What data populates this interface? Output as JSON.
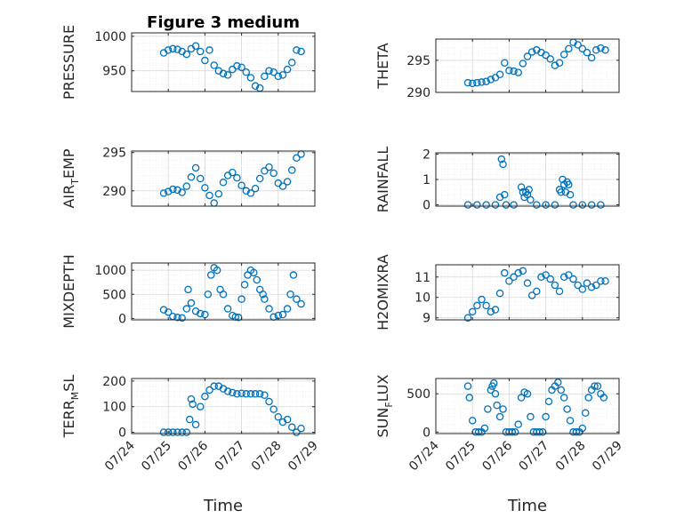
{
  "figure_title": "Figure 3 medium",
  "colors": {
    "marker": "#0072BD",
    "axis": "#262626",
    "grid": "#d7d7d7",
    "minor_grid": "#ebebeb",
    "background": "#ffffff"
  },
  "chart_data": [
    {
      "type": "scatter",
      "id": "pressure",
      "title": "Figure 3 medium",
      "ylabel": "PRESSURE",
      "xlabel": "",
      "xlim": [
        "2010-07-24",
        "2010-07-29"
      ],
      "ylim": [
        920,
        1005
      ],
      "yticks": [
        950,
        1000
      ],
      "ytick_labels": [
        "950",
        "1000"
      ],
      "xticks": [],
      "grid": true,
      "x": [
        "07/24 21:00",
        "07/25 00:00",
        "07/25 03:00",
        "07/25 06:00",
        "07/25 09:00",
        "07/25 12:00",
        "07/25 15:00",
        "07/25 18:00",
        "07/25 21:00",
        "07/26 00:00",
        "07/26 03:00",
        "07/26 06:00",
        "07/26 09:00",
        "07/26 12:00",
        "07/26 15:00",
        "07/26 18:00",
        "07/26 21:00",
        "07/27 00:00",
        "07/27 03:00",
        "07/27 06:00",
        "07/27 09:00",
        "07/27 12:00",
        "07/27 15:00",
        "07/27 18:00",
        "07/27 21:00",
        "07/28 00:00",
        "07/28 03:00",
        "07/28 06:00",
        "07/28 09:00",
        "07/28 12:00",
        "07/28 15:00"
      ],
      "y": [
        976,
        980,
        982,
        981,
        978,
        974,
        982,
        986,
        978,
        965,
        980,
        958,
        950,
        946,
        944,
        952,
        957,
        955,
        948,
        940,
        928,
        925,
        942,
        950,
        948,
        942,
        944,
        952,
        962,
        980,
        978
      ]
    },
    {
      "type": "scatter",
      "id": "theta",
      "ylabel": "THETA",
      "xlabel": "",
      "xlim": [
        "2010-07-24",
        "2010-07-29"
      ],
      "ylim": [
        290,
        298.3
      ],
      "yticks": [
        290,
        295
      ],
      "ytick_labels": [
        "290",
        "295"
      ],
      "xticks": [],
      "grid": true,
      "x": [
        "07/24 21:00",
        "07/25 00:00",
        "07/25 03:00",
        "07/25 06:00",
        "07/25 09:00",
        "07/25 12:00",
        "07/25 15:00",
        "07/25 18:00",
        "07/25 21:00",
        "07/26 00:00",
        "07/26 03:00",
        "07/26 06:00",
        "07/26 09:00",
        "07/26 12:00",
        "07/26 15:00",
        "07/26 18:00",
        "07/26 21:00",
        "07/27 00:00",
        "07/27 03:00",
        "07/27 06:00",
        "07/27 09:00",
        "07/27 12:00",
        "07/27 15:00",
        "07/27 18:00",
        "07/27 21:00",
        "07/28 00:00",
        "07/28 03:00",
        "07/28 06:00",
        "07/28 09:00",
        "07/28 12:00",
        "07/28 15:00"
      ],
      "y": [
        291.5,
        291.4,
        291.5,
        291.6,
        291.7,
        292.0,
        292.3,
        292.8,
        294.6,
        293.4,
        293.3,
        293.1,
        294.5,
        295.6,
        296.3,
        296.6,
        296.2,
        295.8,
        295.2,
        294.2,
        294.6,
        295.9,
        296.8,
        297.8,
        297.4,
        296.8,
        296.2,
        295.4,
        296.6,
        296.9,
        296.6
      ]
    },
    {
      "type": "scatter",
      "id": "air_temp",
      "ylabel": "AIR_TEMP",
      "ylabel_main": "AIR",
      "ylabel_sub": "T",
      "ylabel_tail": "EMP",
      "xlabel": "",
      "xlim": [
        "2010-07-24",
        "2010-07-29"
      ],
      "ylim": [
        288,
        295.2
      ],
      "yticks": [
        290,
        295
      ],
      "ytick_labels": [
        "290",
        "295"
      ],
      "xticks": [],
      "grid": true,
      "x": [
        "07/24 21:00",
        "07/25 00:00",
        "07/25 03:00",
        "07/25 06:00",
        "07/25 09:00",
        "07/25 12:00",
        "07/25 15:00",
        "07/25 18:00",
        "07/25 21:00",
        "07/26 00:00",
        "07/26 03:00",
        "07/26 06:00",
        "07/26 09:00",
        "07/26 12:00",
        "07/26 15:00",
        "07/26 18:00",
        "07/26 21:00",
        "07/27 00:00",
        "07/27 03:00",
        "07/27 06:00",
        "07/27 09:00",
        "07/27 12:00",
        "07/27 15:00",
        "07/27 18:00",
        "07/27 21:00",
        "07/28 00:00",
        "07/28 03:00",
        "07/28 06:00",
        "07/28 09:00",
        "07/28 12:00",
        "07/28 15:00"
      ],
      "y": [
        289.7,
        289.9,
        290.2,
        290.1,
        289.8,
        290.6,
        291.8,
        293.0,
        291.6,
        290.4,
        289.4,
        288.4,
        289.6,
        291.1,
        292.0,
        292.4,
        291.7,
        290.7,
        290.0,
        289.7,
        290.3,
        291.6,
        292.6,
        293.1,
        292.3,
        291.0,
        290.6,
        291.2,
        292.7,
        294.3,
        294.8
      ]
    },
    {
      "type": "scatter",
      "id": "rainfall",
      "ylabel": "RAINFALL",
      "xlabel": "",
      "xlim": [
        "2010-07-24",
        "2010-07-29"
      ],
      "ylim": [
        -0.05,
        2.05
      ],
      "yticks": [
        0,
        1,
        2
      ],
      "ytick_labels": [
        "0",
        "1",
        "2"
      ],
      "xticks": [],
      "grid": true,
      "x": [
        "07/24 21:00",
        "07/25 03:00",
        "07/25 09:00",
        "07/25 15:00",
        "07/25 18:00",
        "07/25 19:00",
        "07/25 20:00",
        "07/25 21:00",
        "07/25 22:00",
        "07/26 03:00",
        "07/26 08:00",
        "07/26 09:00",
        "07/26 10:00",
        "07/26 11:00",
        "07/26 12:00",
        "07/26 13:00",
        "07/26 14:00",
        "07/26 18:00",
        "07/27 00:00",
        "07/27 06:00",
        "07/27 09:00",
        "07/27 10:00",
        "07/27 11:00",
        "07/27 12:00",
        "07/27 13:00",
        "07/27 14:00",
        "07/27 15:00",
        "07/27 16:00",
        "07/27 18:00",
        "07/28 00:00",
        "07/28 06:00",
        "07/28 12:00"
      ],
      "y": [
        0,
        0,
        0,
        0,
        0.3,
        1.8,
        1.6,
        0.4,
        0,
        0,
        0.7,
        0.5,
        0.3,
        0.5,
        0.4,
        0.6,
        0.2,
        0,
        0,
        0,
        0.6,
        0.5,
        1.0,
        0.8,
        0.5,
        0.9,
        0.8,
        0.4,
        0,
        0,
        0,
        0
      ]
    },
    {
      "type": "scatter",
      "id": "mixdepth",
      "ylabel": "MIXDEPTH",
      "xlabel": "",
      "xlim": [
        "2010-07-24",
        "2010-07-29"
      ],
      "ylim": [
        -30,
        1150
      ],
      "yticks": [
        0,
        500,
        1000
      ],
      "ytick_labels": [
        "0",
        "500",
        "1000"
      ],
      "xticks": [],
      "grid": true,
      "x": [
        "07/24 21:00",
        "07/25 00:00",
        "07/25 03:00",
        "07/25 06:00",
        "07/25 09:00",
        "07/25 12:00",
        "07/25 13:00",
        "07/25 15:00",
        "07/25 18:00",
        "07/25 21:00",
        "07/26 00:00",
        "07/26 02:00",
        "07/26 04:00",
        "07/26 06:00",
        "07/26 08:00",
        "07/26 10:00",
        "07/26 12:00",
        "07/26 15:00",
        "07/26 18:00",
        "07/26 20:00",
        "07/26 22:00",
        "07/27 00:00",
        "07/27 02:00",
        "07/27 04:00",
        "07/27 06:00",
        "07/27 08:00",
        "07/27 10:00",
        "07/27 12:00",
        "07/27 14:00",
        "07/27 15:00",
        "07/27 18:00",
        "07/27 21:00",
        "07/28 00:00",
        "07/28 03:00",
        "07/28 06:00",
        "07/28 08:00",
        "07/28 10:00",
        "07/28 12:00",
        "07/28 15:00"
      ],
      "y": [
        180,
        130,
        40,
        20,
        10,
        200,
        600,
        320,
        150,
        100,
        80,
        500,
        900,
        1050,
        1000,
        600,
        500,
        200,
        60,
        30,
        20,
        400,
        700,
        900,
        1000,
        950,
        800,
        600,
        500,
        400,
        200,
        30,
        60,
        80,
        200,
        500,
        900,
        400,
        300
      ]
    },
    {
      "type": "scatter",
      "id": "h2omixra",
      "ylabel": "H2OMIXRA",
      "xlabel": "",
      "xlim": [
        "2010-07-24",
        "2010-07-29"
      ],
      "ylim": [
        8.9,
        11.6
      ],
      "yticks": [
        9,
        10,
        11
      ],
      "ytick_labels": [
        "9",
        "10",
        "11"
      ],
      "xticks": [],
      "grid": true,
      "x": [
        "07/24 21:00",
        "07/25 00:00",
        "07/25 03:00",
        "07/25 06:00",
        "07/25 09:00",
        "07/25 12:00",
        "07/25 15:00",
        "07/25 18:00",
        "07/25 21:00",
        "07/26 00:00",
        "07/26 03:00",
        "07/26 06:00",
        "07/26 09:00",
        "07/26 12:00",
        "07/26 15:00",
        "07/26 18:00",
        "07/26 21:00",
        "07/27 00:00",
        "07/27 03:00",
        "07/27 06:00",
        "07/27 09:00",
        "07/27 12:00",
        "07/27 15:00",
        "07/27 18:00",
        "07/27 21:00",
        "07/28 00:00",
        "07/28 03:00",
        "07/28 06:00",
        "07/28 09:00",
        "07/28 12:00",
        "07/28 15:00"
      ],
      "y": [
        9.0,
        9.3,
        9.6,
        9.9,
        9.6,
        9.3,
        9.4,
        10.2,
        11.2,
        10.8,
        11.0,
        11.2,
        11.3,
        10.7,
        10.1,
        10.3,
        11.0,
        11.1,
        10.9,
        10.6,
        10.3,
        11.0,
        11.1,
        10.9,
        10.6,
        10.4,
        10.7,
        10.5,
        10.6,
        10.8,
        10.8
      ]
    },
    {
      "type": "scatter",
      "id": "terr_msl",
      "ylabel": "TERR_MSL",
      "ylabel_main": "TERR",
      "ylabel_sub": "M",
      "ylabel_tail": "SL",
      "xlabel": "Time",
      "xlim": [
        "2010-07-24",
        "2010-07-29"
      ],
      "ylim": [
        -5,
        210
      ],
      "yticks": [
        0,
        100,
        200
      ],
      "ytick_labels": [
        "0",
        "100",
        "200"
      ],
      "xticks": [
        "2010-07-24",
        "2010-07-25",
        "2010-07-26",
        "2010-07-27",
        "2010-07-28",
        "2010-07-29"
      ],
      "xtick_labels": [
        "07/24",
        "07/25",
        "07/26",
        "07/27",
        "07/28",
        "07/29"
      ],
      "grid": true,
      "x": [
        "07/24 21:00",
        "07/25 00:00",
        "07/25 03:00",
        "07/25 06:00",
        "07/25 09:00",
        "07/25 12:00",
        "07/25 14:00",
        "07/25 15:00",
        "07/25 16:00",
        "07/25 18:00",
        "07/25 21:00",
        "07/26 00:00",
        "07/26 03:00",
        "07/26 06:00",
        "07/26 09:00",
        "07/26 12:00",
        "07/26 15:00",
        "07/26 18:00",
        "07/26 21:00",
        "07/27 00:00",
        "07/27 03:00",
        "07/27 06:00",
        "07/27 09:00",
        "07/27 12:00",
        "07/27 15:00",
        "07/27 18:00",
        "07/27 21:00",
        "07/28 00:00",
        "07/28 03:00",
        "07/28 06:00",
        "07/28 09:00",
        "07/28 12:00",
        "07/28 15:00"
      ],
      "y": [
        0,
        0,
        0,
        0,
        0,
        0,
        50,
        130,
        110,
        30,
        100,
        140,
        165,
        180,
        180,
        170,
        160,
        155,
        150,
        152,
        150,
        150,
        150,
        150,
        145,
        120,
        90,
        60,
        40,
        50,
        20,
        0,
        15
      ]
    },
    {
      "type": "scatter",
      "id": "sun_flux",
      "ylabel": "SUN_FLUX",
      "ylabel_main": "SUN",
      "ylabel_sub": "F",
      "ylabel_tail": "LUX",
      "xlabel": "Time",
      "xlim": [
        "2010-07-24",
        "2010-07-29"
      ],
      "ylim": [
        -20,
        700
      ],
      "yticks": [
        0,
        500
      ],
      "ytick_labels": [
        "0",
        "500"
      ],
      "xticks": [
        "2010-07-24",
        "2010-07-25",
        "2010-07-26",
        "2010-07-27",
        "2010-07-28",
        "2010-07-29"
      ],
      "xtick_labels": [
        "07/24",
        "07/25",
        "07/26",
        "07/27",
        "07/28",
        "07/29"
      ],
      "grid": true,
      "x": [
        "07/24 21:00",
        "07/24 22:00",
        "07/25 00:00",
        "07/25 02:00",
        "07/25 04:00",
        "07/25 06:00",
        "07/25 08:00",
        "07/25 10:00",
        "07/25 12:00",
        "07/25 13:00",
        "07/25 14:00",
        "07/25 15:00",
        "07/25 16:00",
        "07/25 18:00",
        "07/25 20:00",
        "07/25 22:00",
        "07/26 00:00",
        "07/26 02:00",
        "07/26 04:00",
        "07/26 06:00",
        "07/26 08:00",
        "07/26 10:00",
        "07/26 12:00",
        "07/26 14:00",
        "07/26 16:00",
        "07/26 18:00",
        "07/26 20:00",
        "07/26 22:00",
        "07/27 00:00",
        "07/27 02:00",
        "07/27 04:00",
        "07/27 06:00",
        "07/27 08:00",
        "07/27 10:00",
        "07/27 12:00",
        "07/27 14:00",
        "07/27 16:00",
        "07/27 18:00",
        "07/27 20:00",
        "07/27 22:00",
        "07/28 00:00",
        "07/28 02:00",
        "07/28 04:00",
        "07/28 06:00",
        "07/28 08:00",
        "07/28 10:00",
        "07/28 12:00",
        "07/28 14:00"
      ],
      "y": [
        600,
        450,
        150,
        0,
        0,
        0,
        50,
        300,
        550,
        600,
        640,
        500,
        350,
        200,
        300,
        0,
        0,
        0,
        0,
        100,
        450,
        520,
        500,
        200,
        0,
        0,
        0,
        0,
        200,
        400,
        550,
        600,
        650,
        550,
        450,
        300,
        150,
        0,
        0,
        0,
        50,
        250,
        450,
        550,
        600,
        600,
        500,
        450
      ]
    }
  ]
}
